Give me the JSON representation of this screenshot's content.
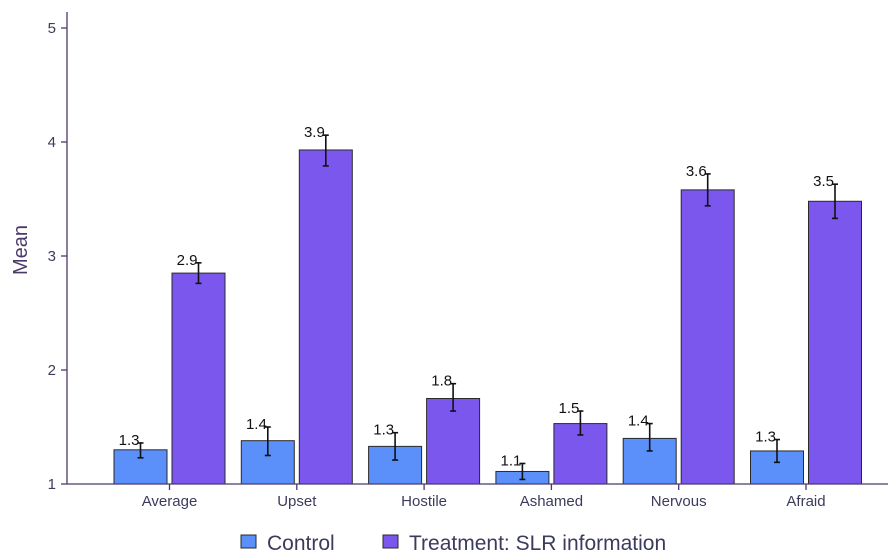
{
  "chart_data": {
    "type": "bar",
    "ylabel": "Mean",
    "ylim": [
      1,
      5.2
    ],
    "yticks": [
      1,
      2,
      3,
      4,
      5
    ],
    "grid": false,
    "legend_position": "bottom",
    "categories": [
      "Average",
      "Upset",
      "Hostile",
      "Ashamed",
      "Nervous",
      "Afraid"
    ],
    "series": [
      {
        "name": "Control",
        "color": "#5b8ff9",
        "values": [
          1.3,
          1.38,
          1.33,
          1.11,
          1.4,
          1.29
        ],
        "labels": [
          "1.3",
          "1.4",
          "1.3",
          "1.1",
          "1.4",
          "1.3"
        ],
        "error_low": [
          1.23,
          1.25,
          1.21,
          1.04,
          1.29,
          1.19
        ],
        "error_high": [
          1.36,
          1.5,
          1.45,
          1.18,
          1.53,
          1.39
        ]
      },
      {
        "name": "Treatment: SLR information",
        "color": "#7b57ee",
        "values": [
          2.85,
          3.93,
          1.75,
          1.53,
          3.58,
          3.48
        ],
        "labels": [
          "2.9",
          "3.9",
          "1.8",
          "1.5",
          "3.6",
          "3.5"
        ],
        "error_low": [
          2.76,
          3.79,
          1.64,
          1.43,
          3.44,
          3.33
        ],
        "error_high": [
          2.94,
          4.06,
          1.88,
          1.64,
          3.72,
          3.63
        ]
      }
    ]
  }
}
